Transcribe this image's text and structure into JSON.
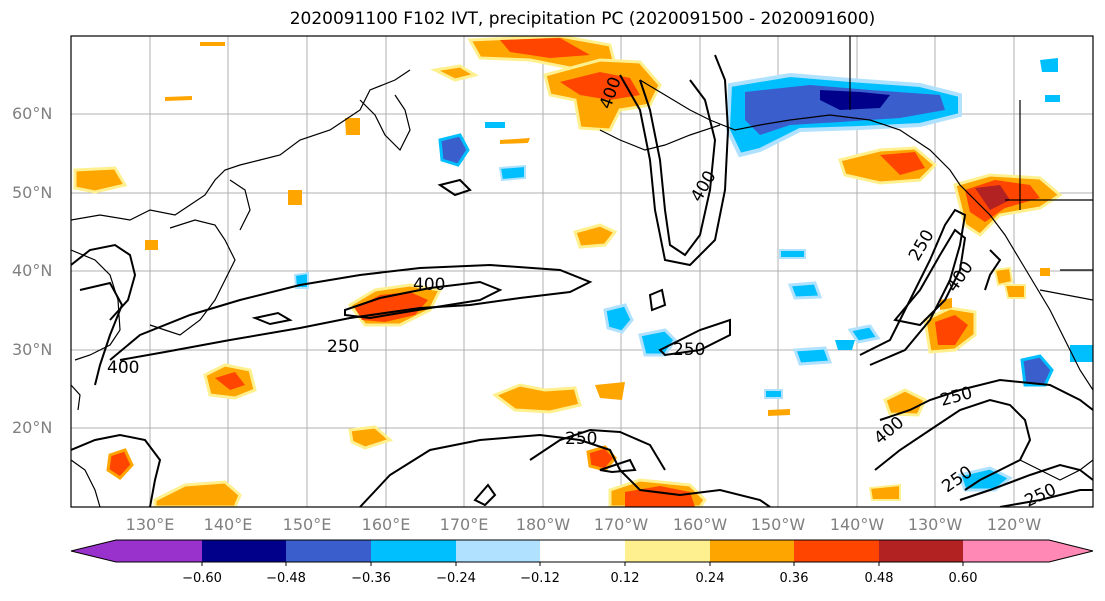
{
  "title": "2020091100 F102 IVT, precipitation PC (2020091500 - 2020091600)",
  "lat_labels": [
    "60°N",
    "50°N",
    "40°N",
    "30°N",
    "20°N"
  ],
  "lon_labels": [
    "130°E",
    "140°E",
    "150°E",
    "160°E",
    "170°E",
    "180°W",
    "170°W",
    "160°W",
    "150°W",
    "140°W",
    "130°W",
    "120°W"
  ],
  "contour_labels": [
    "400",
    "400",
    "250",
    "400",
    "250",
    "250",
    "400",
    "250",
    "400",
    "250",
    "400",
    "250",
    "250"
  ],
  "colorbar": {
    "ticks": [
      "−0.60",
      "−0.48",
      "−0.36",
      "−0.24",
      "−0.12",
      "0.12",
      "0.24",
      "0.36",
      "0.48",
      "0.60"
    ],
    "colors": [
      "#9932cc",
      "#00008b",
      "#3a5fcd",
      "#00bfff",
      "#b0e2ff",
      "#ffffff",
      "#fff08f",
      "#ffa500",
      "#ff4500",
      "#b22222",
      "#ff88b4"
    ]
  }
}
